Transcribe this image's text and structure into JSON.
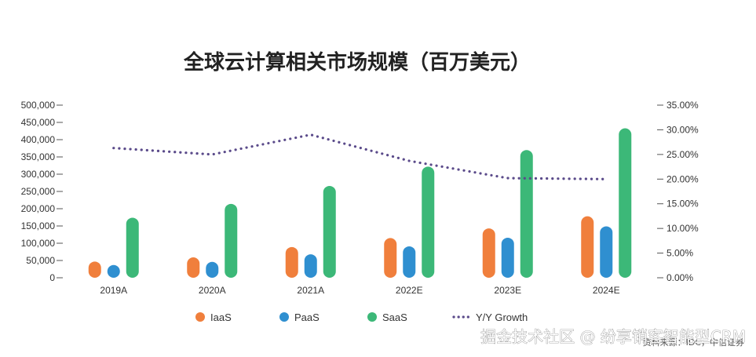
{
  "chart_data": {
    "type": "bar",
    "title": "全球云计算相关市场规模（百万美元）",
    "categories": [
      "2019A",
      "2020A",
      "2021A",
      "2022E",
      "2023E",
      "2024E"
    ],
    "series": [
      {
        "name": "IaaS",
        "type": "bar",
        "color": "#f07f3c",
        "values": [
          47000,
          59000,
          89000,
          115000,
          143000,
          178000
        ]
      },
      {
        "name": "PaaS",
        "type": "bar",
        "color": "#2f8fd0",
        "values": [
          37000,
          46000,
          68000,
          91000,
          116000,
          149000
        ]
      },
      {
        "name": "SaaS",
        "type": "bar",
        "color": "#3cb878",
        "values": [
          174000,
          214000,
          266000,
          322000,
          370000,
          433000
        ]
      },
      {
        "name": "Y/Y Growth",
        "type": "line",
        "color": "#5a4a8a",
        "values": [
          26.3,
          25.0,
          29.0,
          23.7,
          20.2,
          20.0
        ]
      }
    ],
    "y_left": {
      "ylim": [
        0,
        500000
      ],
      "ticks": [
        "0",
        "50,000",
        "100,000",
        "150,000",
        "200,000",
        "250,000",
        "300,000",
        "350,000",
        "400,000",
        "450,000",
        "500,000"
      ]
    },
    "y_right": {
      "ylim": [
        0,
        35
      ],
      "ticks": [
        "0.00%",
        "5.00%",
        "10.00%",
        "15.00%",
        "20.00%",
        "25.00%",
        "30.00%",
        "35.00%"
      ]
    },
    "legend_position": "bottom",
    "grid": false
  },
  "footer": {
    "watermark": "掘金技术社区 @ 纷享销客智能型CRM",
    "source": "资料来源：IDC，中信证券"
  }
}
